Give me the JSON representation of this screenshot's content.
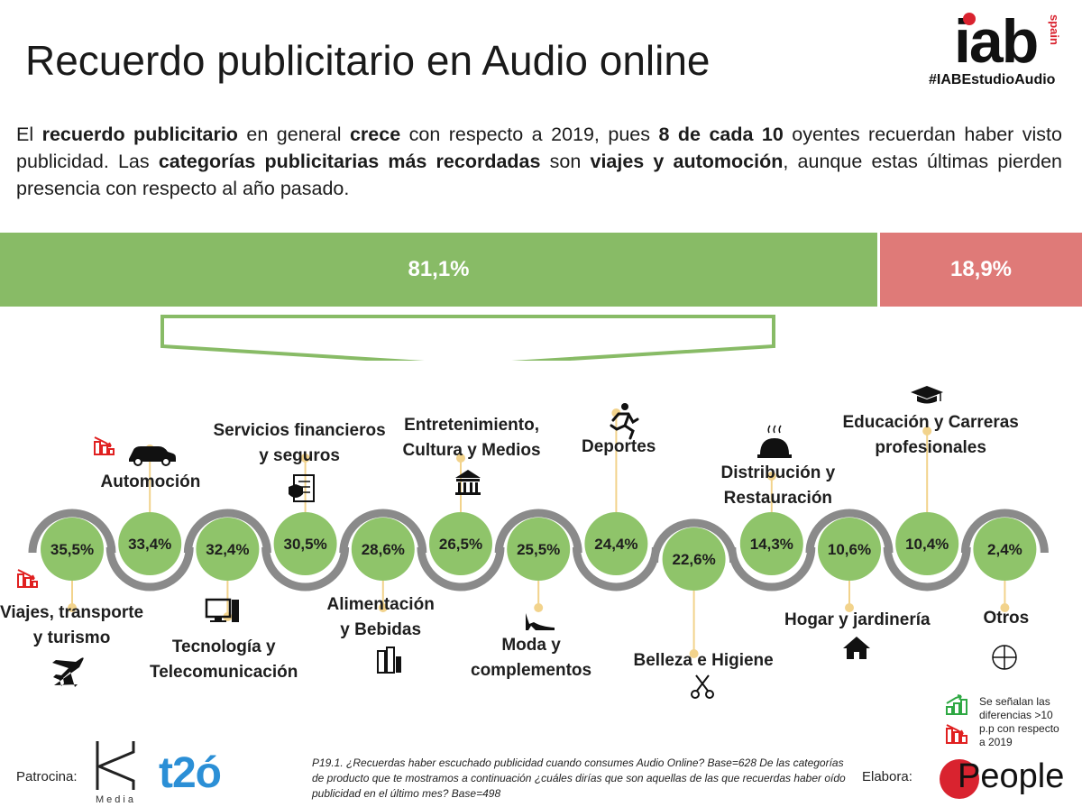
{
  "header": {
    "title": "Recuerdo publicitario en Audio online",
    "logo_text": "iab",
    "logo_sub": "spain",
    "hashtag": "#IABEstudioAudio"
  },
  "intro": {
    "p1": "El ",
    "b1": "recuerdo publicitario",
    "p2": " en general ",
    "b2": "crece",
    "p3": " con respecto a 2019, pues ",
    "b3": "8 de cada 10",
    "p4": " oyentes recuerdan haber visto publicidad. Las ",
    "b4": "categorías publicitarias más recordadas",
    "p5": " son ",
    "b5": "viajes y automoción",
    "p6": ", aunque estas últimas pierden presencia con respecto al año pasado."
  },
  "colors": {
    "green": "#88bb66",
    "green_light": "#8fc46a",
    "red_bar": "#df7a78",
    "track": "#8a8a8a",
    "stem": "#f2d38c",
    "down_red": "#e02020",
    "up_green": "#2ea843"
  },
  "chart_data": [
    {
      "type": "bar",
      "orientation": "horizontal-stacked",
      "categories": [
        "",
        ""
      ],
      "values": [
        81.1,
        18.9
      ],
      "labels": [
        "81,1%",
        "18,9%"
      ],
      "ylim": [
        0,
        100
      ]
    },
    {
      "type": "bubble-timeline",
      "categories": [
        "Viajes, transporte y turismo",
        "Automoción",
        "Tecnología y Telecomunicación",
        "Servicios financieros y seguros",
        "Alimentación y Bebidas",
        "Entretenimiento, Cultura y Medios",
        "Moda y complementos",
        "Deportes",
        "Belleza e Higiene",
        "Distribución y Restauración",
        "Hogar y jardinería",
        "Educación y Carreras profesionales",
        "Otros"
      ],
      "values": [
        35.5,
        33.4,
        32.4,
        30.5,
        28.6,
        26.5,
        25.5,
        24.4,
        22.6,
        14.3,
        10.6,
        10.4,
        2.4
      ],
      "labels": [
        "35,5%",
        "33,4%",
        "32,4%",
        "30,5%",
        "28,6%",
        "26,5%",
        "25,5%",
        "24,4%",
        "22,6%",
        "14,3%",
        "10,6%",
        "10,4%",
        "2,4%"
      ],
      "trend": [
        "down",
        "down",
        "",
        "",
        "",
        "",
        "",
        "",
        "",
        "",
        "",
        "",
        ""
      ]
    }
  ],
  "categories": [
    {
      "l1": "Viajes, transporte",
      "l2": "y turismo",
      "icon": "airplane-icon",
      "trend": "down"
    },
    {
      "l1": "Automoción",
      "l2": "",
      "icon": "car-icon",
      "trend": "down"
    },
    {
      "l1": "Tecnología y",
      "l2": "Telecomunicación",
      "icon": "computer-icon",
      "trend": ""
    },
    {
      "l1": "Servicios financieros",
      "l2": "y seguros",
      "icon": "insurance-document-icon",
      "trend": ""
    },
    {
      "l1": "Alimentación",
      "l2": "y Bebidas",
      "icon": "groceries-icon",
      "trend": ""
    },
    {
      "l1": "Entretenimiento,",
      "l2": "Cultura y Medios",
      "icon": "museum-icon",
      "trend": ""
    },
    {
      "l1": "Moda y",
      "l2": "complementos",
      "icon": "high-heel-icon",
      "trend": ""
    },
    {
      "l1": "Deportes",
      "l2": "",
      "icon": "runner-icon",
      "trend": ""
    },
    {
      "l1": "Belleza e Higiene",
      "l2": "",
      "icon": "scissors-icon",
      "trend": ""
    },
    {
      "l1": "Distribución y",
      "l2": "Restauración",
      "icon": "cloche-icon",
      "trend": ""
    },
    {
      "l1": "Hogar y jardinería",
      "l2": "",
      "icon": "house-icon",
      "trend": ""
    },
    {
      "l1": "Educación y Carreras",
      "l2": "profesionales",
      "icon": "graduation-cap-icon",
      "trend": ""
    },
    {
      "l1": "Otros",
      "l2": "",
      "icon": "plus-circle-icon",
      "trend": ""
    }
  ],
  "legend": {
    "line1": "Se señalan las",
    "line2": "diferencias >10",
    "line3": "p.p con respecto",
    "line4": "a 2019"
  },
  "footer": {
    "sponsor_label": "Patrocina:",
    "sponsor_media": "Media",
    "sponsor_t20": "t2ó",
    "note": "P19.1. ¿Recuerdas haber escuchado publicidad cuando consumes Audio Online? Base=628 De las categorías de producto que te mostramos a continuación ¿cuáles dirías que son aquellas de las que recuerdas haber oído publicidad en el último mes? Base=498",
    "elabora_label": "Elabora:",
    "elabora_brand": "People"
  }
}
